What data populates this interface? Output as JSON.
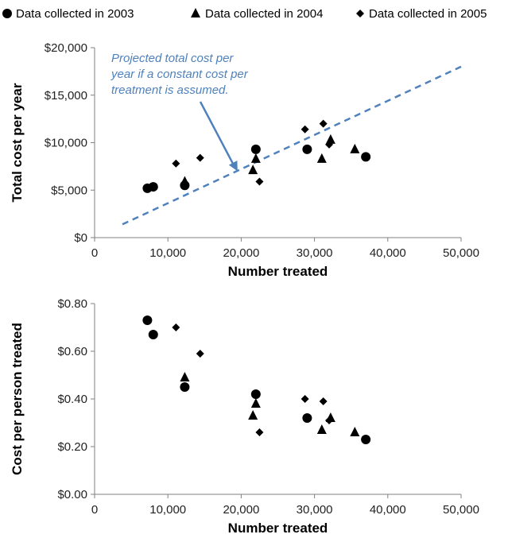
{
  "legend": {
    "items": [
      {
        "marker": "circle",
        "label": "Data collected in 2003"
      },
      {
        "marker": "triangle",
        "label": "Data collected in 2004"
      },
      {
        "marker": "diamond",
        "label": "Data collected in 2005"
      }
    ]
  },
  "colors": {
    "markers": "#000000",
    "projection": "#4F81BD",
    "axis": "#808080"
  },
  "chart_data": [
    {
      "type": "scatter",
      "xlabel": "Number treated",
      "ylabel": "Total cost per year",
      "xlim": [
        0,
        50000
      ],
      "ylim": [
        0,
        20000
      ],
      "x_ticks": [
        0,
        10000,
        20000,
        30000,
        40000,
        50000
      ],
      "x_tick_labels": [
        "0",
        "10,000",
        "20,000",
        "30,000",
        "40,000",
        "50,000"
      ],
      "y_ticks": [
        0,
        5000,
        10000,
        15000,
        20000
      ],
      "y_tick_labels": [
        "$0",
        "$5,000",
        "$10,000",
        "$15,000",
        "$20,000"
      ],
      "grid": false,
      "series": [
        {
          "name": "Data collected in 2003",
          "marker": "circle",
          "points": [
            [
              7200,
              5200
            ],
            [
              8000,
              5350
            ],
            [
              12300,
              5500
            ],
            [
              22000,
              9300
            ],
            [
              29000,
              9300
            ],
            [
              37000,
              8500
            ]
          ]
        },
        {
          "name": "Data collected in 2004",
          "marker": "triangle",
          "points": [
            [
              12300,
              5900
            ],
            [
              21600,
              7100
            ],
            [
              22000,
              8300
            ],
            [
              31000,
              8300
            ],
            [
              32200,
              10300
            ],
            [
              35500,
              9300
            ]
          ]
        },
        {
          "name": "Data collected in 2005",
          "marker": "diamond",
          "points": [
            [
              11100,
              7800
            ],
            [
              14400,
              8400
            ],
            [
              22500,
              5900
            ],
            [
              28700,
              11400
            ],
            [
              31200,
              12000
            ],
            [
              32000,
              9800
            ]
          ]
        }
      ],
      "projection": {
        "x": [
          3800,
          50000
        ],
        "y": [
          1400,
          18000
        ]
      },
      "annotation": {
        "lines": [
          "Projected total cost per",
          "year if a constant cost per",
          "treatment is assumed."
        ],
        "arrow_to": [
          19500,
          7000
        ]
      }
    },
    {
      "type": "scatter",
      "xlabel": "Number treated",
      "ylabel": "Cost per person treated",
      "xlim": [
        0,
        50000
      ],
      "ylim": [
        0,
        0.8
      ],
      "x_ticks": [
        0,
        10000,
        20000,
        30000,
        40000,
        50000
      ],
      "x_tick_labels": [
        "0",
        "10,000",
        "20,000",
        "30,000",
        "40,000",
        "50,000"
      ],
      "y_ticks": [
        0,
        0.2,
        0.4,
        0.6,
        0.8
      ],
      "y_tick_labels": [
        "$0.00",
        "$0.20",
        "$0.40",
        "$0.60",
        "$0.80"
      ],
      "grid": false,
      "series": [
        {
          "name": "Data collected in 2003",
          "marker": "circle",
          "points": [
            [
              7200,
              0.73
            ],
            [
              8000,
              0.67
            ],
            [
              12300,
              0.45
            ],
            [
              22000,
              0.42
            ],
            [
              29000,
              0.32
            ],
            [
              37000,
              0.23
            ]
          ]
        },
        {
          "name": "Data collected in 2004",
          "marker": "triangle",
          "points": [
            [
              12300,
              0.49
            ],
            [
              21600,
              0.33
            ],
            [
              22000,
              0.38
            ],
            [
              31000,
              0.27
            ],
            [
              32200,
              0.32
            ],
            [
              35500,
              0.26
            ]
          ]
        },
        {
          "name": "Data collected in 2005",
          "marker": "diamond",
          "points": [
            [
              11100,
              0.7
            ],
            [
              14400,
              0.59
            ],
            [
              22500,
              0.26
            ],
            [
              28700,
              0.4
            ],
            [
              31200,
              0.39
            ],
            [
              32000,
              0.31
            ]
          ]
        }
      ]
    }
  ]
}
